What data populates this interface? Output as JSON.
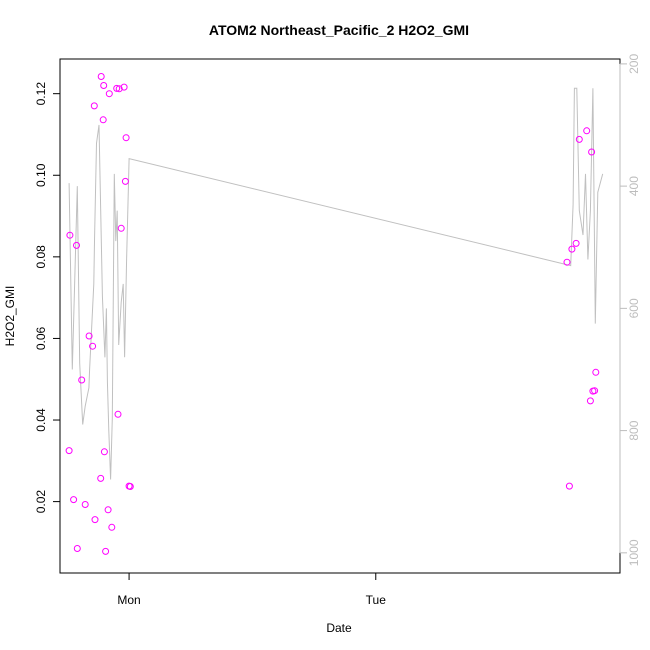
{
  "chart_data": {
    "type": "scatter",
    "title": "ATOM2 Northeast_Pacific_2 H2O2_GMI",
    "xlabel": "Date",
    "ylabel": "H2O2_GMI",
    "x_unit": "days",
    "x_ticks": [
      {
        "value": 1.0,
        "label": "Mon"
      },
      {
        "value": 2.0,
        "label": "Tue"
      }
    ],
    "xlim": [
      0.72,
      2.99
    ],
    "ylim": [
      0.0025,
      0.1285
    ],
    "y_ticks": [
      0.02,
      0.04,
      0.06,
      0.08,
      0.1,
      0.12
    ],
    "y_tick_labels": [
      "0.02",
      "0.04",
      "0.06",
      "0.08",
      "0.10",
      "0.12"
    ],
    "right_axis": {
      "ylim": [
        1033,
        192
      ],
      "ticks": [
        200,
        400,
        600,
        800,
        1000
      ],
      "tick_labels": [
        "200",
        "400",
        "600",
        "800",
        "1000"
      ],
      "color": "#bdbdbd"
    },
    "series": [
      {
        "color": "#ff00ff",
        "marker": "circle",
        "x": [
          0.757,
          0.76,
          0.775,
          0.787,
          0.79,
          0.808,
          0.822,
          0.838,
          0.852,
          0.859,
          0.862,
          0.885,
          0.887,
          0.895,
          0.897,
          0.9,
          0.905,
          0.915,
          0.92,
          0.93,
          0.95,
          0.955,
          0.96,
          0.968,
          0.98,
          0.985,
          0.988,
          1.0,
          1.005,
          2.775,
          2.785,
          2.795,
          2.812,
          2.825,
          2.855,
          2.87,
          2.875,
          2.88,
          2.887,
          2.892
        ],
        "y": [
          0.0325,
          0.0853,
          0.0205,
          0.0828,
          0.0085,
          0.0498,
          0.0193,
          0.0606,
          0.0581,
          0.117,
          0.0156,
          0.0257,
          0.1242,
          0.1136,
          0.122,
          0.0322,
          0.0078,
          0.018,
          0.12,
          0.0137,
          0.1213,
          0.0414,
          0.1212,
          0.087,
          0.1216,
          0.0985,
          0.1092,
          0.0238,
          0.0237,
          0.0787,
          0.0238,
          0.0819,
          0.0833,
          0.1088,
          0.1109,
          0.0447,
          0.1057,
          0.0471,
          0.0472,
          0.0517
        ]
      },
      {
        "color": "#c0c0c0",
        "marker": "line",
        "axis": "right",
        "x": [
          0.757,
          0.77,
          0.79,
          0.8,
          0.812,
          0.822,
          0.837,
          0.84,
          0.852,
          0.857,
          0.86,
          0.868,
          0.878,
          0.885,
          0.892,
          0.902,
          0.908,
          0.912,
          0.918,
          0.925,
          0.932,
          0.94,
          0.946,
          0.952,
          0.958,
          0.968,
          0.976,
          0.982,
          0.99,
          1.0,
          2.79,
          2.8,
          2.805,
          2.815,
          2.825,
          2.84,
          2.85,
          2.86,
          2.87,
          2.88,
          2.89,
          2.9,
          2.92
        ],
        "y": [
          395,
          700,
          400,
          690,
          790,
          760,
          730,
          700,
          600,
          560,
          490,
          330,
          300,
          440,
          580,
          680,
          600,
          720,
          800,
          880,
          780,
          380,
          490,
          440,
          660,
          590,
          560,
          680,
          520,
          355,
          530,
          430,
          240,
          240,
          440,
          480,
          380,
          520,
          440,
          240,
          625,
          410,
          380
        ]
      }
    ]
  }
}
